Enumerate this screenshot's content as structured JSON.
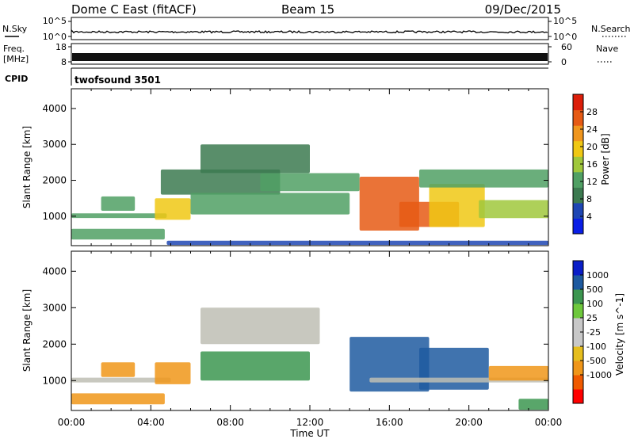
{
  "header": {
    "title": "Dome C East (fitACF)",
    "beam": "Beam 15",
    "date": "09/Dec/2015"
  },
  "top_panels": {
    "nsky_label": "N.Sky",
    "nsearch_label": "N.Search",
    "noise_ticks": [
      "10^5",
      "10^0"
    ],
    "freq_label": "Freq.",
    "freq_unit": "[MHz]",
    "freq_ticks": [
      "18",
      "8"
    ],
    "nave_label": "Nave",
    "nave_ticks": [
      "60",
      "0"
    ],
    "cpid_label": "CPID",
    "cpid_value": "twofsound 3501"
  },
  "colors": {
    "power_scale": [
      "#0a1ee6",
      "#1e46b4",
      "#3c7a50",
      "#50a064",
      "#a0c83c",
      "#f0c814",
      "#f0961e",
      "#e65a14",
      "#dc1e0a"
    ],
    "velocity_scale": [
      "#ff0000",
      "#f05a00",
      "#f09619",
      "#e6be1e",
      "#c8c8c8",
      "#c8c8c8",
      "#6ec83c",
      "#3c9650",
      "#1e5aa0",
      "#0a1ec8"
    ],
    "ground_scatter": "#bebeb4"
  },
  "chart_data": [
    {
      "type": "heatmap",
      "panel": "power",
      "ylabel": "Slant Range [km]",
      "xlabel": "Time UT",
      "x_ticks": [
        "00:00",
        "04:00",
        "08:00",
        "12:00",
        "16:00",
        "20:00",
        "00:00"
      ],
      "y_ticks": [
        1000,
        2000,
        3000,
        4000
      ],
      "xlim_hours": [
        0,
        24
      ],
      "ylim_km": [
        180,
        4550
      ],
      "colorbar": {
        "label": "Power [dB]",
        "ticks": [
          4,
          8,
          12,
          16,
          20,
          24,
          28
        ],
        "range": [
          0,
          32
        ]
      },
      "regions": [
        {
          "t0": 0.0,
          "t1": 4.8,
          "r0": 950,
          "r1": 1080,
          "value": 12
        },
        {
          "t0": 0.0,
          "t1": 4.7,
          "r0": 350,
          "r1": 650,
          "value": 14
        },
        {
          "t0": 4.8,
          "t1": 24.0,
          "r0": 200,
          "r1": 320,
          "value": 6
        },
        {
          "t0": 1.5,
          "t1": 3.2,
          "r0": 1150,
          "r1": 1550,
          "value": 14
        },
        {
          "t0": 4.2,
          "t1": 6.0,
          "r0": 900,
          "r1": 1500,
          "value": 18
        },
        {
          "t0": 4.5,
          "t1": 10.5,
          "r0": 1600,
          "r1": 2300,
          "value": 10
        },
        {
          "t0": 6.5,
          "t1": 12.0,
          "r0": 2200,
          "r1": 3000,
          "value": 9
        },
        {
          "t0": 6.0,
          "t1": 14.0,
          "r0": 1050,
          "r1": 1650,
          "value": 14
        },
        {
          "t0": 9.5,
          "t1": 14.5,
          "r0": 1700,
          "r1": 2200,
          "value": 13
        },
        {
          "t0": 14.5,
          "t1": 17.5,
          "r0": 600,
          "r1": 2100,
          "value": 26
        },
        {
          "t0": 16.5,
          "t1": 19.5,
          "r0": 700,
          "r1": 1400,
          "value": 25
        },
        {
          "t0": 18.0,
          "t1": 20.8,
          "r0": 700,
          "r1": 1900,
          "value": 21
        },
        {
          "t0": 20.5,
          "t1": 24.0,
          "r0": 950,
          "r1": 1450,
          "value": 16
        },
        {
          "t0": 17.5,
          "t1": 24.0,
          "r0": 1800,
          "r1": 2300,
          "value": 11
        }
      ]
    },
    {
      "type": "heatmap",
      "panel": "velocity",
      "ylabel": "Slant Range [km]",
      "xlabel": "Time UT",
      "x_ticks": [
        "00:00",
        "04:00",
        "08:00",
        "12:00",
        "16:00",
        "20:00",
        "00:00"
      ],
      "y_ticks": [
        1000,
        2000,
        3000,
        4000
      ],
      "xlim_hours": [
        0,
        24
      ],
      "ylim_km": [
        180,
        4550
      ],
      "colorbar": {
        "label": "Velocity [m s^-1]",
        "ticks": [
          "1000",
          "500",
          "100",
          "25",
          "-25",
          "-100",
          "-500",
          "-1000"
        ]
      },
      "regions": [
        {
          "t0": 0.0,
          "t1": 5.0,
          "r0": 950,
          "r1": 1080,
          "value": 0,
          "ground_scatter": true
        },
        {
          "t0": 0.0,
          "t1": 4.7,
          "r0": 350,
          "r1": 650,
          "value": -300
        },
        {
          "t0": 1.5,
          "t1": 3.2,
          "r0": 1100,
          "r1": 1500,
          "value": -300
        },
        {
          "t0": 4.2,
          "t1": 6.0,
          "r0": 900,
          "r1": 1500,
          "value": -350
        },
        {
          "t0": 6.5,
          "t1": 12.5,
          "r0": 2000,
          "r1": 3000,
          "value": 0,
          "ground_scatter": true
        },
        {
          "t0": 6.5,
          "t1": 12.0,
          "r0": 1000,
          "r1": 1800,
          "value": 300
        },
        {
          "t0": 14.0,
          "t1": 18.0,
          "r0": 700,
          "r1": 2200,
          "value": 600
        },
        {
          "t0": 17.5,
          "t1": 21.0,
          "r0": 750,
          "r1": 1900,
          "value": 700
        },
        {
          "t0": 15.0,
          "t1": 24.0,
          "r0": 950,
          "r1": 1080,
          "value": 0,
          "ground_scatter": true
        },
        {
          "t0": 21.0,
          "t1": 24.0,
          "r0": 1000,
          "r1": 1400,
          "value": -150
        },
        {
          "t0": 22.5,
          "t1": 24.0,
          "r0": 200,
          "r1": 500,
          "value": 150
        }
      ]
    }
  ]
}
